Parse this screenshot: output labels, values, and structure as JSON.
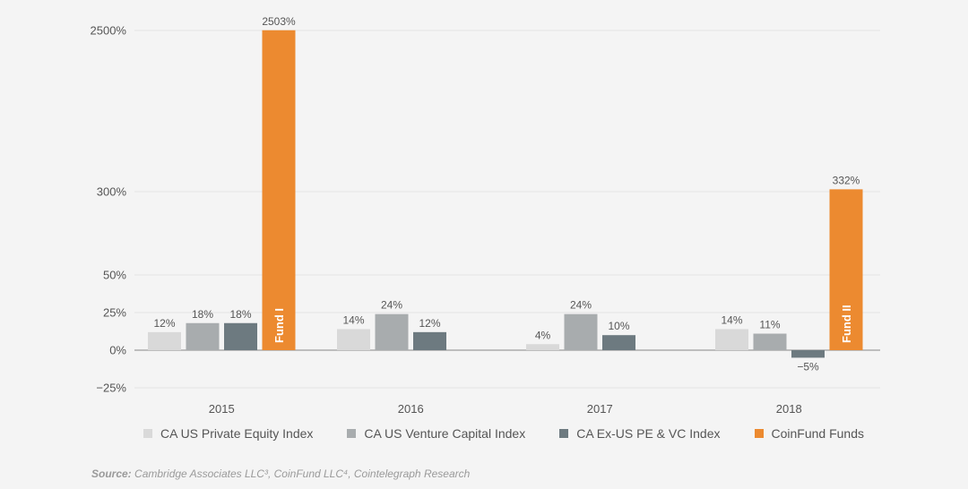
{
  "chart_data": {
    "type": "bar",
    "categories": [
      "2015",
      "2016",
      "2017",
      "2018"
    ],
    "series": [
      {
        "name": "CA US Private Equity Index",
        "color": "#d9d9d9",
        "values": [
          12,
          14,
          4,
          14
        ],
        "labels": [
          "12%",
          "14%",
          "4%",
          "14%"
        ]
      },
      {
        "name": "CA US Venture Capital Index",
        "color": "#a8acae",
        "values": [
          18,
          24,
          24,
          11
        ],
        "labels": [
          "18%",
          "24%",
          "24%",
          "11%"
        ]
      },
      {
        "name": "CA Ex-US PE & VC Index",
        "color": "#6d7a80",
        "values": [
          18,
          12,
          10,
          -5
        ],
        "labels": [
          "18%",
          "12%",
          "10%",
          "−5%"
        ]
      },
      {
        "name": "CoinFund Funds",
        "color": "#ec8a30",
        "values": [
          2503,
          null,
          null,
          332
        ],
        "labels": [
          "2503%",
          "",
          "",
          "332%"
        ],
        "inner_labels": [
          "Fund I",
          "",
          "",
          "Fund II"
        ]
      }
    ],
    "yticks": [
      {
        "value": 2500,
        "label": "2500%"
      },
      {
        "value": 300,
        "label": "300%"
      },
      {
        "value": 50,
        "label": "50%"
      },
      {
        "value": 25,
        "label": "25%"
      },
      {
        "value": 0,
        "label": "0%"
      },
      {
        "value": -25,
        "label": "−25%"
      }
    ],
    "ylim": [
      -25,
      2500
    ],
    "axis_scale": "broken / non-linear",
    "grid": true,
    "legend_position": "bottom"
  },
  "source": {
    "prefix": "Source:",
    "text": " Cambridge Associates LLC³, CoinFund LLC⁴, Cointelegraph Research"
  }
}
